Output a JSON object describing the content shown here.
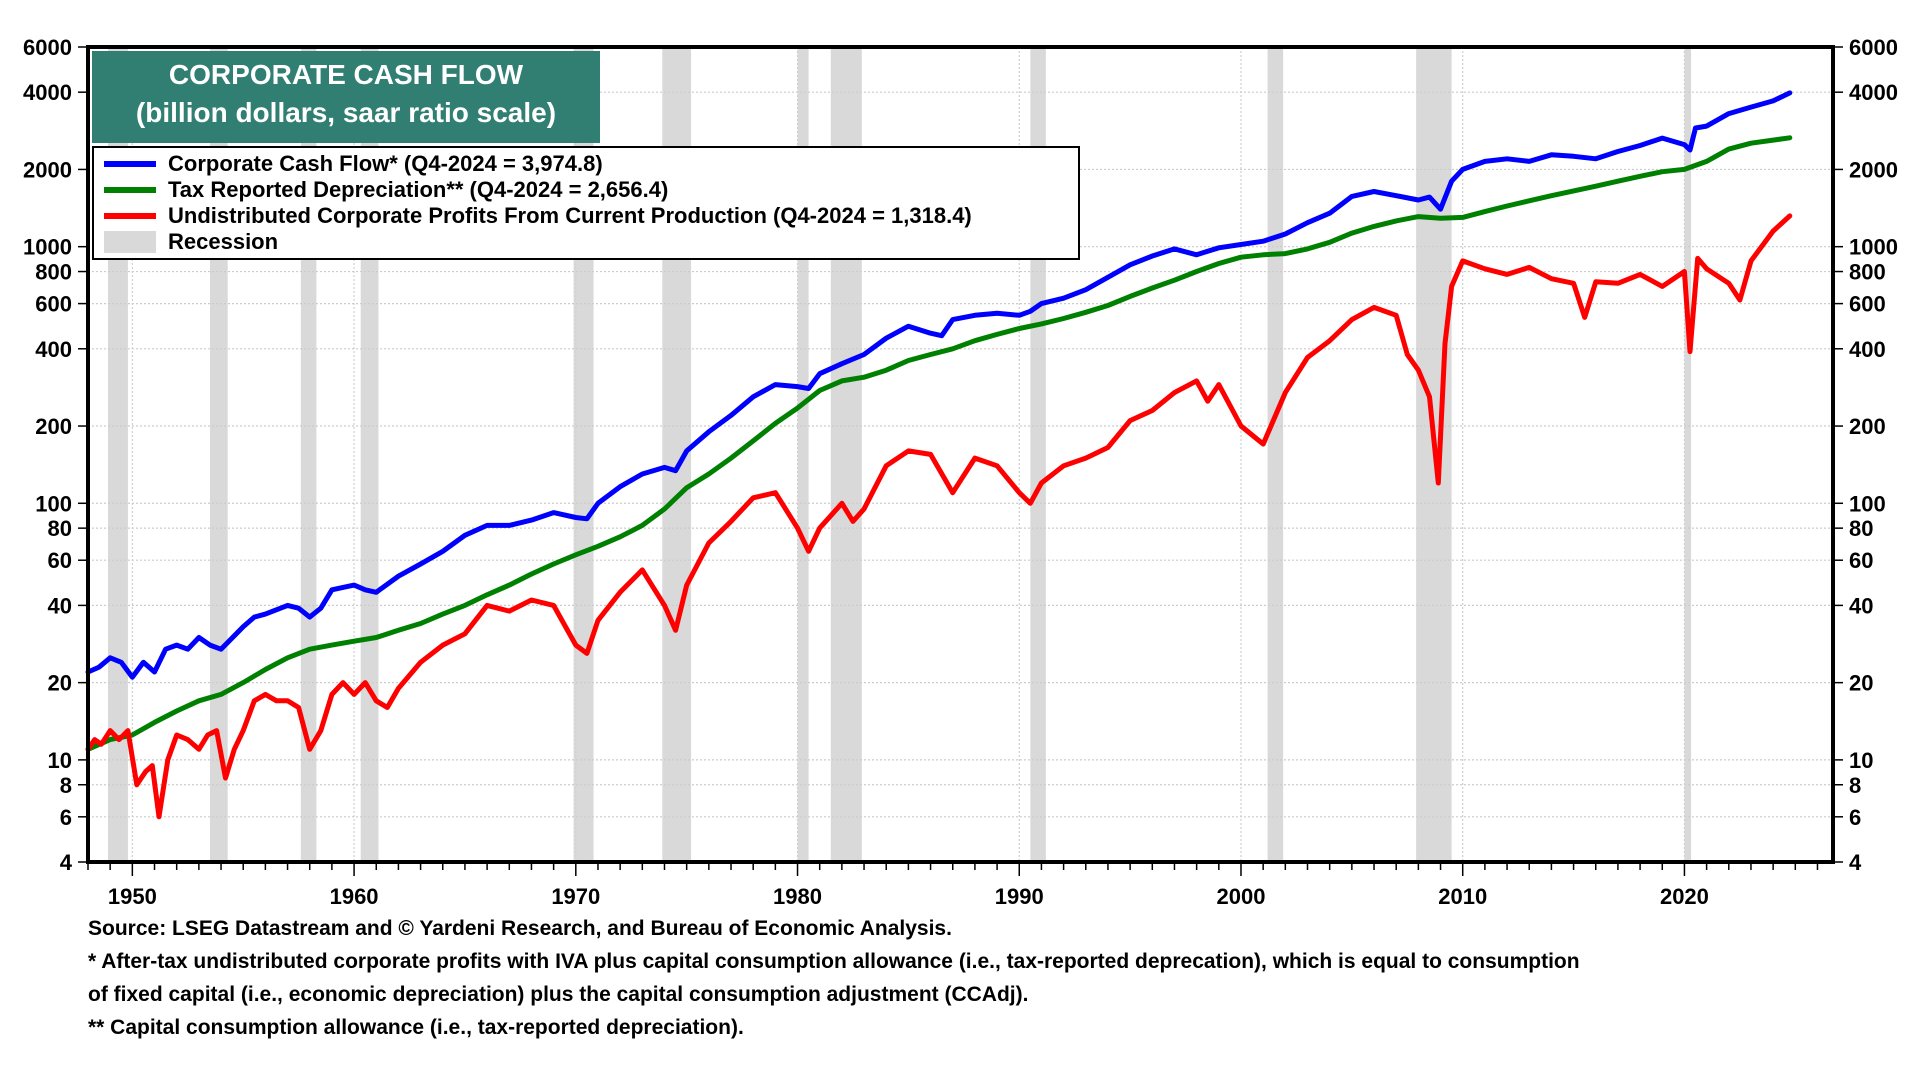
{
  "chart_data": {
    "type": "line",
    "title": "CORPORATE CASH FLOW",
    "subtitle": "(billion dollars, saar ratio scale)",
    "xlabel": "",
    "ylabel": "",
    "yscale": "log",
    "ylim": [
      4,
      6000
    ],
    "xlim": [
      1948,
      2026.7
    ],
    "yticks": [
      4,
      6,
      8,
      10,
      20,
      40,
      60,
      80,
      100,
      200,
      400,
      600,
      800,
      1000,
      2000,
      4000,
      6000
    ],
    "ytick_labels": [
      "4",
      "6",
      "8",
      "10",
      "20",
      "40",
      "60",
      "80",
      "100",
      "200",
      "400",
      "600",
      "800",
      "1000",
      "2000",
      "4000",
      "6000"
    ],
    "xticks": [
      1950,
      1960,
      1970,
      1980,
      1990,
      2000,
      2010,
      2020
    ],
    "xtick_labels": [
      "1950",
      "1960",
      "1970",
      "1980",
      "1990",
      "2000",
      "2010",
      "2020"
    ],
    "grid": true,
    "legend_position": "top-left",
    "series": [
      {
        "name": "Corporate Cash Flow* (Q4-2024 = 3,974.8)",
        "color": "#0000ff",
        "x": [
          1948,
          1948.5,
          1949,
          1949.5,
          1950,
          1950.5,
          1951,
          1951.5,
          1952,
          1952.5,
          1953,
          1953.5,
          1954,
          1955,
          1955.5,
          1956,
          1957,
          1957.5,
          1958,
          1958.5,
          1959,
          1960,
          1960.5,
          1961,
          1962,
          1963,
          1964,
          1965,
          1966,
          1967,
          1968,
          1969,
          1970,
          1970.5,
          1971,
          1972,
          1973,
          1974,
          1974.5,
          1975,
          1976,
          1977,
          1978,
          1979,
          1980,
          1980.5,
          1981,
          1982,
          1983,
          1984,
          1985,
          1986,
          1986.5,
          1987,
          1988,
          1989,
          1990,
          1990.5,
          1991,
          1992,
          1993,
          1994,
          1995,
          1996,
          1997,
          1998,
          1998.5,
          1999,
          2000,
          2001,
          2002,
          2003,
          2004,
          2005,
          2006,
          2007,
          2008,
          2008.5,
          2009,
          2009.5,
          2010,
          2011,
          2012,
          2013,
          2014,
          2015,
          2016,
          2017,
          2018,
          2019,
          2020,
          2020.25,
          2020.5,
          2021,
          2022,
          2023,
          2024,
          2024.75
        ],
        "values": [
          22,
          23,
          25,
          24,
          21,
          24,
          22,
          27,
          28,
          27,
          30,
          28,
          27,
          33,
          36,
          37,
          40,
          39,
          36,
          39,
          46,
          48,
          46,
          45,
          52,
          58,
          65,
          75,
          82,
          82,
          86,
          92,
          88,
          87,
          100,
          116,
          130,
          138,
          134,
          160,
          190,
          220,
          260,
          290,
          285,
          280,
          320,
          350,
          380,
          440,
          490,
          460,
          450,
          520,
          540,
          550,
          540,
          560,
          600,
          630,
          680,
          760,
          850,
          920,
          980,
          930,
          960,
          990,
          1020,
          1050,
          1120,
          1240,
          1350,
          1570,
          1640,
          1580,
          1520,
          1560,
          1400,
          1800,
          2000,
          2150,
          2200,
          2150,
          2280,
          2250,
          2200,
          2350,
          2480,
          2650,
          2500,
          2380,
          2900,
          2950,
          3300,
          3500,
          3700,
          3974.8
        ]
      },
      {
        "name": "Tax Reported Depreciation** (Q4-2024 = 2,656.4)",
        "color": "#008000",
        "x": [
          1948,
          1949,
          1950,
          1951,
          1952,
          1953,
          1954,
          1955,
          1956,
          1957,
          1958,
          1959,
          1960,
          1961,
          1962,
          1963,
          1964,
          1965,
          1966,
          1967,
          1968,
          1969,
          1970,
          1971,
          1972,
          1973,
          1974,
          1975,
          1976,
          1977,
          1978,
          1979,
          1980,
          1981,
          1982,
          1983,
          1984,
          1985,
          1986,
          1987,
          1988,
          1989,
          1990,
          1991,
          1992,
          1993,
          1994,
          1995,
          1996,
          1997,
          1998,
          1999,
          2000,
          2001,
          2002,
          2003,
          2004,
          2005,
          2006,
          2007,
          2008,
          2009,
          2010,
          2011,
          2012,
          2013,
          2014,
          2015,
          2016,
          2017,
          2018,
          2019,
          2020,
          2021,
          2022,
          2023,
          2024.75
        ],
        "values": [
          11,
          12,
          12.5,
          14,
          15.5,
          17,
          18,
          20,
          22.5,
          25,
          27,
          28,
          29,
          30,
          32,
          34,
          37,
          40,
          44,
          48,
          53,
          58,
          63,
          68,
          74,
          82,
          95,
          115,
          130,
          150,
          175,
          205,
          235,
          275,
          300,
          310,
          330,
          360,
          380,
          400,
          430,
          455,
          480,
          500,
          525,
          555,
          590,
          640,
          690,
          740,
          800,
          860,
          910,
          930,
          940,
          980,
          1040,
          1130,
          1200,
          1260,
          1310,
          1290,
          1300,
          1370,
          1440,
          1510,
          1580,
          1650,
          1720,
          1800,
          1880,
          1960,
          2000,
          2150,
          2400,
          2530,
          2656.4
        ]
      },
      {
        "name": "Undistributed Corporate Profits From Current Production (Q4-2024 = 1,318.4)",
        "color": "#ff0000",
        "x": [
          1948,
          1948.3,
          1948.6,
          1949,
          1949.4,
          1949.8,
          1950.2,
          1950.6,
          1950.9,
          1951.2,
          1951.6,
          1952,
          1952.5,
          1953,
          1953.4,
          1953.8,
          1954.2,
          1954.6,
          1955,
          1955.5,
          1956,
          1956.5,
          1957,
          1957.5,
          1958,
          1958.5,
          1959,
          1959.5,
          1960,
          1960.5,
          1961,
          1961.5,
          1962,
          1963,
          1964,
          1965,
          1966,
          1967,
          1968,
          1969,
          1970,
          1970.5,
          1971,
          1972,
          1973,
          1974,
          1974.5,
          1975,
          1976,
          1977,
          1978,
          1979,
          1980,
          1980.5,
          1981,
          1982,
          1982.5,
          1983,
          1984,
          1985,
          1986,
          1987,
          1988,
          1989,
          1990,
          1990.5,
          1991,
          1992,
          1993,
          1994,
          1995,
          1996,
          1997,
          1998,
          1998.5,
          1999,
          2000,
          2001,
          2002,
          2003,
          2004,
          2005,
          2006,
          2007,
          2007.5,
          2008,
          2008.5,
          2008.9,
          2009.2,
          2009.5,
          2010,
          2011,
          2012,
          2013,
          2014,
          2015,
          2015.5,
          2016,
          2017,
          2018,
          2019,
          2020,
          2020.25,
          2020.6,
          2021,
          2022,
          2022.5,
          2023,
          2024,
          2024.75
        ],
        "values": [
          11,
          12,
          11.5,
          13,
          12,
          13,
          8,
          9,
          9.5,
          6,
          10,
          12.5,
          12,
          11,
          12.5,
          13,
          8.5,
          11,
          13,
          17,
          18,
          17,
          17,
          16,
          11,
          13,
          18,
          20,
          18,
          20,
          17,
          16,
          19,
          24,
          28,
          31,
          40,
          38,
          42,
          40,
          28,
          26,
          35,
          45,
          55,
          40,
          32,
          48,
          70,
          85,
          105,
          110,
          80,
          65,
          80,
          100,
          85,
          95,
          140,
          160,
          155,
          110,
          150,
          140,
          110,
          100,
          120,
          140,
          150,
          165,
          210,
          230,
          270,
          300,
          250,
          290,
          200,
          170,
          270,
          370,
          430,
          520,
          580,
          540,
          380,
          330,
          260,
          120,
          420,
          700,
          880,
          820,
          780,
          830,
          750,
          720,
          530,
          730,
          720,
          780,
          700,
          800,
          390,
          900,
          820,
          720,
          620,
          880,
          1150,
          1318.4
        ]
      }
    ],
    "recessions": [
      [
        1948.9,
        1949.8
      ],
      [
        1953.5,
        1954.3
      ],
      [
        1957.6,
        1958.3
      ],
      [
        1960.3,
        1961.1
      ],
      [
        1969.9,
        1970.8
      ],
      [
        1973.9,
        1975.2
      ],
      [
        1980.0,
        1980.5
      ],
      [
        1981.5,
        1982.9
      ],
      [
        1990.5,
        1991.2
      ],
      [
        2001.2,
        2001.9
      ],
      [
        2007.9,
        2009.5
      ],
      [
        2020.0,
        2020.3
      ]
    ]
  },
  "title_box": {
    "line1": "CORPORATE CASH FLOW",
    "line2": "(billion dollars, saar ratio scale)"
  },
  "legend": {
    "items": [
      {
        "label": "Corporate Cash Flow* (Q4-2024 = 3,974.8)",
        "color": "#0000ff"
      },
      {
        "label": "Tax Reported Depreciation** (Q4-2024 = 2,656.4)",
        "color": "#008000"
      },
      {
        "label": "Undistributed Corporate Profits From Current Production (Q4-2024 = 1,318.4)",
        "color": "#ff0000"
      },
      {
        "label": "Recession",
        "color": "#d9d9d9"
      }
    ]
  },
  "notes": {
    "source": "Source: LSEG Datastream and © Yardeni Research, and Bureau of Economic Analysis.",
    "note1a": "* After-tax undistributed corporate profits with IVA plus capital consumption allowance (i.e., tax-reported deprecation), which is equal to consumption",
    "note1b": "of fixed capital (i.e., economic depreciation) plus the capital consumption adjustment (CCAdj).",
    "note2": "** Capital consumption allowance (i.e., tax-reported depreciation)."
  }
}
